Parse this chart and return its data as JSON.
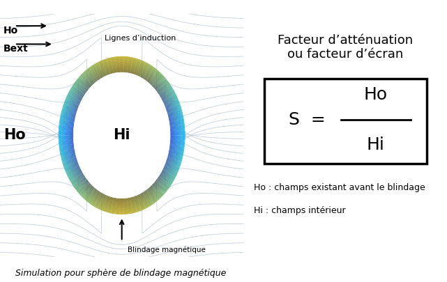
{
  "title_right": "Facteur d’atténuation\nou facteur d’écran",
  "legend_ho": "Ho : champs existant avant le blindage",
  "legend_hi": "Hi : champs intérieur",
  "caption": "Simulation pour sphère de blindage magnétique",
  "label_ho": "Ho",
  "label_hi": "Hi",
  "label_lignes": "Lignes d’induction",
  "label_blindage": "Blindage magnétique",
  "arrow_ho_label": "Ho",
  "arrow_bext_label": "Bext",
  "left_bg": "#dce8f0",
  "left_border": "#b0c4d8",
  "right_bg": "#ffffff",
  "line_color": "#b8c8d8",
  "num_field_lines": 28,
  "title_fontsize": 13,
  "formula_fontsize": 18,
  "label_ho_fontsize": 15,
  "label_hi_fontsize": 15,
  "small_fontsize": 9,
  "caption_fontsize": 9
}
